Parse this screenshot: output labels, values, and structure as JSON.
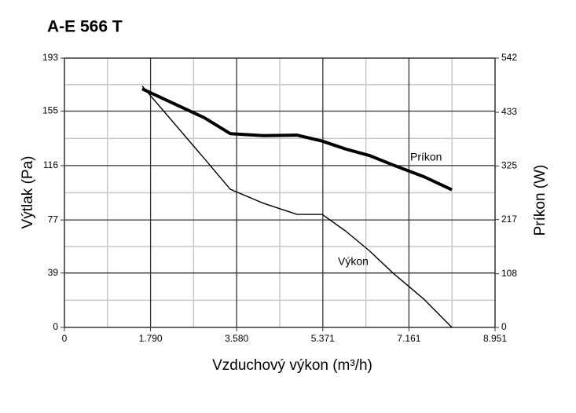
{
  "chart_data": {
    "type": "line",
    "title": "A-E 566 T",
    "x_label": "Vzduchový výkon (m³/h)",
    "y_label": "Výtlak (Pa)",
    "y2_label": "Príkon (W)",
    "x": [
      1617,
      2907,
      3447,
      4133,
      4835,
      5357,
      5847,
      6337,
      6828,
      7480,
      8053
    ],
    "series": [
      {
        "name": "Výkon",
        "color": "#000000",
        "values": [
          173,
          121,
          99,
          89,
          81,
          81,
          69,
          55,
          39,
          20,
          0
        ]
      },
      {
        "name": "Príkon",
        "color": "#000000",
        "axis": "y2",
        "values": [
          480,
          422,
          390,
          386,
          387,
          375,
          359,
          346,
          327,
          303,
          277
        ]
      }
    ],
    "xlim": [
      0,
      8951
    ],
    "xticks": [
      0,
      {
        "value": 1790,
        "label": "1.790"
      },
      {
        "value": 3580,
        "label": "3.580"
      },
      {
        "value": 5371,
        "label": "5.371"
      },
      {
        "value": 7161,
        "label": "7.161"
      },
      {
        "value": 8951,
        "label": "8.951"
      }
    ],
    "ylim": [
      0,
      193
    ],
    "yticks": [
      0,
      39,
      77,
      116,
      155,
      193
    ],
    "y2lim": [
      0,
      542
    ],
    "y2ticks": [
      0,
      108,
      217,
      325,
      433,
      542
    ],
    "grid": true,
    "minor_grid": true
  }
}
